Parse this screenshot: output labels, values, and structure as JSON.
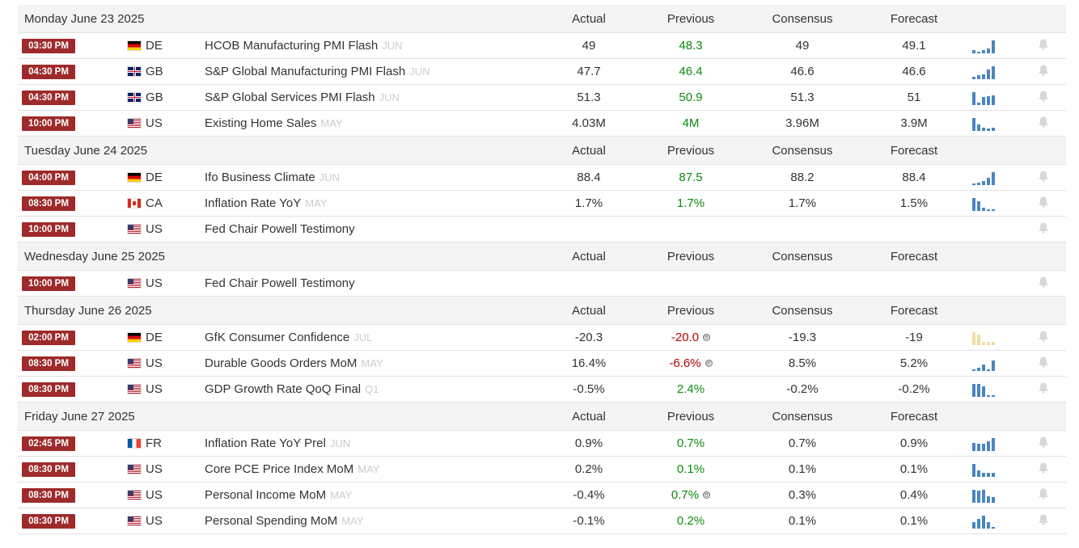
{
  "headers": {
    "actual": "Actual",
    "previous": "Previous",
    "consensus": "Consensus",
    "forecast": "Forecast"
  },
  "days": [
    {
      "date": "Monday June 23 2025",
      "events": [
        {
          "time": "03:30 PM",
          "country": "DE",
          "flag": "de",
          "event": "HCOB Manufacturing PMI Flash",
          "ref": "JUN",
          "actual": "49",
          "previous": "48.3",
          "prev_color": "green",
          "prev_revised": false,
          "consensus": "49",
          "forecast": "49.1",
          "spark": [
            0.2,
            0.1,
            0.2,
            0.35,
            1.0
          ],
          "spark_color": "#4a86c0"
        },
        {
          "time": "04:30 PM",
          "country": "GB",
          "flag": "gb",
          "event": "S&P Global Manufacturing PMI Flash",
          "ref": "JUN",
          "actual": "47.7",
          "previous": "46.4",
          "prev_color": "green",
          "prev_revised": false,
          "consensus": "46.6",
          "forecast": "46.6",
          "spark": [
            0.15,
            0.3,
            0.35,
            0.7,
            1.0
          ],
          "spark_color": "#4a86c0"
        },
        {
          "time": "04:30 PM",
          "country": "GB",
          "flag": "gb",
          "event": "S&P Global Services PMI Flash",
          "ref": "JUN",
          "actual": "51.3",
          "previous": "50.9",
          "prev_color": "green",
          "prev_revised": false,
          "consensus": "51.3",
          "forecast": "51",
          "spark": [
            1.0,
            0.15,
            0.6,
            0.65,
            0.75
          ],
          "spark_color": "#4a86c0"
        },
        {
          "time": "10:00 PM",
          "country": "US",
          "flag": "us",
          "event": "Existing Home Sales",
          "ref": "MAY",
          "actual": "4.03M",
          "previous": "4M",
          "prev_color": "green",
          "prev_revised": false,
          "consensus": "3.96M",
          "forecast": "3.9M",
          "spark": [
            1.0,
            0.45,
            0.2,
            0.15,
            0.2
          ],
          "spark_color": "#4a86c0"
        }
      ]
    },
    {
      "date": "Tuesday June 24 2025",
      "events": [
        {
          "time": "04:00 PM",
          "country": "DE",
          "flag": "de",
          "event": "Ifo Business Climate",
          "ref": "JUN",
          "actual": "88.4",
          "previous": "87.5",
          "prev_color": "green",
          "prev_revised": false,
          "consensus": "88.2",
          "forecast": "88.4",
          "spark": [
            0.1,
            0.15,
            0.3,
            0.55,
            1.0
          ],
          "spark_color": "#4a86c0"
        },
        {
          "time": "08:30 PM",
          "country": "CA",
          "flag": "ca",
          "event": "Inflation Rate YoY",
          "ref": "MAY",
          "actual": "1.7%",
          "previous": "1.7%",
          "prev_color": "green",
          "prev_revised": false,
          "consensus": "1.7%",
          "forecast": "1.5%",
          "spark": [
            1.0,
            0.75,
            0.25,
            0.1,
            0.1
          ],
          "spark_color": "#4a86c0"
        },
        {
          "time": "10:00 PM",
          "country": "US",
          "flag": "us",
          "event": "Fed Chair Powell Testimony",
          "ref": "",
          "actual": "",
          "previous": "",
          "prev_color": "green",
          "prev_revised": false,
          "consensus": "",
          "forecast": "",
          "spark": [],
          "spark_color": "#4a86c0"
        }
      ]
    },
    {
      "date": "Wednesday June 25 2025",
      "events": [
        {
          "time": "10:00 PM",
          "country": "US",
          "flag": "us",
          "event": "Fed Chair Powell Testimony",
          "ref": "",
          "actual": "",
          "previous": "",
          "prev_color": "green",
          "prev_revised": false,
          "consensus": "",
          "forecast": "",
          "spark": [],
          "spark_color": "#4a86c0"
        }
      ]
    },
    {
      "date": "Thursday June 26 2025",
      "events": [
        {
          "time": "02:00 PM",
          "country": "DE",
          "flag": "de",
          "event": "GfK Consumer Confidence",
          "ref": "JUL",
          "actual": "-20.3",
          "previous": "-20.0",
          "prev_color": "red",
          "prev_revised": true,
          "consensus": "-19.3",
          "forecast": "-19",
          "spark": [
            1.0,
            0.8,
            0.2,
            0.2,
            0.2
          ],
          "spark_color": "#f2dcaa"
        },
        {
          "time": "08:30 PM",
          "country": "US",
          "flag": "us",
          "event": "Durable Goods Orders MoM",
          "ref": "MAY",
          "actual": "16.4%",
          "previous": "-6.6%",
          "prev_color": "red",
          "prev_revised": true,
          "consensus": "8.5%",
          "forecast": "5.2%",
          "spark": [
            0.1,
            0.2,
            0.45,
            0.1,
            0.8
          ],
          "spark_color": "#4a86c0"
        },
        {
          "time": "08:30 PM",
          "country": "US",
          "flag": "us",
          "event": "GDP Growth Rate QoQ Final",
          "ref": "Q1",
          "actual": "-0.5%",
          "previous": "2.4%",
          "prev_color": "green",
          "prev_revised": false,
          "consensus": "-0.2%",
          "forecast": "-0.2%",
          "spark": [
            1.0,
            1.0,
            0.8,
            0.1,
            0.1
          ],
          "spark_color": "#4a86c0"
        }
      ]
    },
    {
      "date": "Friday June 27 2025",
      "events": [
        {
          "time": "02:45 PM",
          "country": "FR",
          "flag": "fr",
          "event": "Inflation Rate YoY Prel",
          "ref": "JUN",
          "actual": "0.9%",
          "previous": "0.7%",
          "prev_color": "green",
          "prev_revised": false,
          "consensus": "0.7%",
          "forecast": "0.9%",
          "spark": [
            0.6,
            0.55,
            0.55,
            0.7,
            1.0
          ],
          "spark_color": "#4a86c0"
        },
        {
          "time": "08:30 PM",
          "country": "US",
          "flag": "us",
          "event": "Core PCE Price Index MoM",
          "ref": "MAY",
          "actual": "0.2%",
          "previous": "0.1%",
          "prev_color": "green",
          "prev_revised": false,
          "consensus": "0.1%",
          "forecast": "0.1%",
          "spark": [
            1.0,
            0.45,
            0.3,
            0.3,
            0.3
          ],
          "spark_color": "#4a86c0"
        },
        {
          "time": "08:30 PM",
          "country": "US",
          "flag": "us",
          "event": "Personal Income MoM",
          "ref": "MAY",
          "actual": "-0.4%",
          "previous": "0.7%",
          "prev_color": "green",
          "prev_revised": true,
          "consensus": "0.3%",
          "forecast": "0.4%",
          "spark": [
            1.0,
            0.9,
            1.0,
            0.5,
            0.4
          ],
          "spark_color": "#4a86c0"
        },
        {
          "time": "08:30 PM",
          "country": "US",
          "flag": "us",
          "event": "Personal Spending MoM",
          "ref": "MAY",
          "actual": "-0.1%",
          "previous": "0.2%",
          "prev_color": "green",
          "prev_revised": false,
          "consensus": "0.1%",
          "forecast": "0.1%",
          "spark": [
            0.5,
            0.7,
            1.0,
            0.5,
            0.1
          ],
          "spark_color": "#4a86c0"
        }
      ]
    }
  ]
}
